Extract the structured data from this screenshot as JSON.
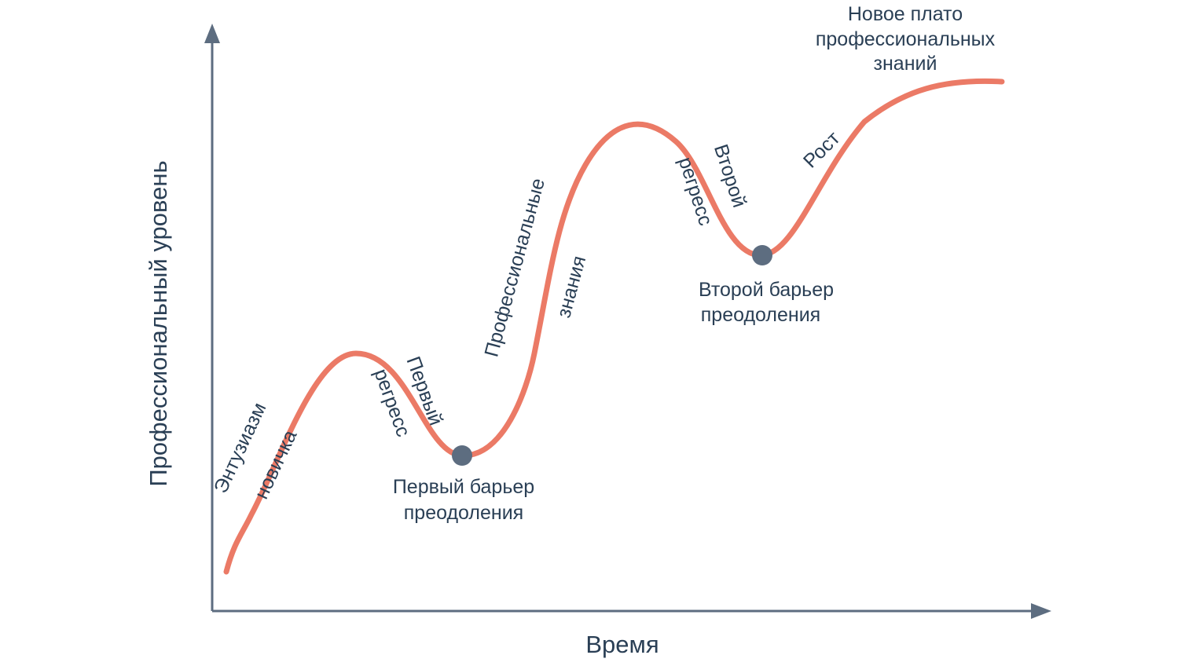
{
  "axes": {
    "x_label": "Время",
    "y_label": "Профессиональный уровень"
  },
  "stages": {
    "enthusiasm_line1": "Энтузиазм",
    "enthusiasm_line2": "новичка",
    "first_regress_line1": "Первый",
    "first_regress_line2": "регресс",
    "prof_knowledge_line1": "Профессиональные",
    "prof_knowledge_line2": "знания",
    "second_regress_line1": "Второй",
    "second_regress_line2": "регресс",
    "growth": "Рост"
  },
  "barriers": {
    "first_line1": "Первый барьер",
    "first_line2": "преодоления",
    "second_line1": "Второй барьер",
    "second_line2": "преодоления"
  },
  "plateau": {
    "line1": "Новое плато",
    "line2": "профессиональных",
    "line3": "знаний"
  },
  "colors": {
    "curve": "#eb7a66",
    "axis": "#5d6d80",
    "text": "#2a3f55"
  }
}
